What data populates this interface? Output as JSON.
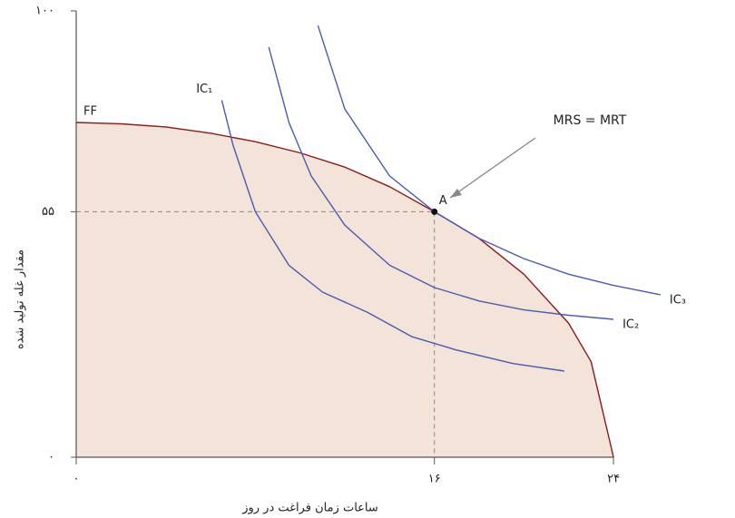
{
  "chart_data": {
    "type": "line",
    "x_label": "ساعات زمان فراغت در روز",
    "y_label": "مقدار غله تولید شده",
    "xlim": [
      0,
      27
    ],
    "ylim": [
      0,
      100
    ],
    "xticks": [
      {
        "value": 0,
        "label": "۰"
      },
      {
        "value": 16,
        "label": "۱۶"
      },
      {
        "value": 24,
        "label": "۲۴"
      }
    ],
    "yticks": [
      {
        "value": 0,
        "label": "۰"
      },
      {
        "value": 55,
        "label": "۵۵"
      },
      {
        "value": 100,
        "label": "۱۰۰"
      }
    ],
    "grid": false,
    "area_color": "#f3e3d8",
    "series": [
      {
        "name": "FF",
        "color": "#8b1a1a",
        "x": [
          0,
          2,
          4,
          6,
          8,
          10,
          12,
          14,
          16,
          18,
          20,
          22,
          23,
          24
        ],
        "values": [
          75,
          74.7,
          74,
          72.6,
          70.7,
          68.2,
          65,
          60.6,
          55,
          49,
          41,
          30,
          21.4,
          0
        ]
      },
      {
        "name": "IC₁",
        "color": "#4a5bb5",
        "x": [
          6.5,
          7,
          8,
          9.5,
          11,
          13,
          15,
          17,
          19.5,
          21.8
        ],
        "values": [
          80,
          70,
          55,
          43,
          37,
          32.5,
          27,
          24,
          21,
          19.3
        ]
      },
      {
        "name": "IC₂",
        "color": "#4a5bb5",
        "x": [
          8.6,
          9.5,
          10.5,
          12,
          14,
          16,
          18,
          20,
          22,
          24
        ],
        "values": [
          91.9,
          75,
          63,
          52,
          43,
          38,
          35,
          33,
          31.8,
          30.9
        ]
      },
      {
        "name": "IC₃",
        "color": "#4a5bb5",
        "x": [
          10.8,
          12,
          14,
          16,
          18,
          20,
          22,
          24,
          26.1
        ],
        "values": [
          96.7,
          78,
          63,
          55,
          49,
          44.5,
          41,
          38.5,
          36.4
        ]
      }
    ],
    "point": {
      "label": "A",
      "x": 16,
      "y": 55
    },
    "annotation": "MRS = MRT"
  }
}
